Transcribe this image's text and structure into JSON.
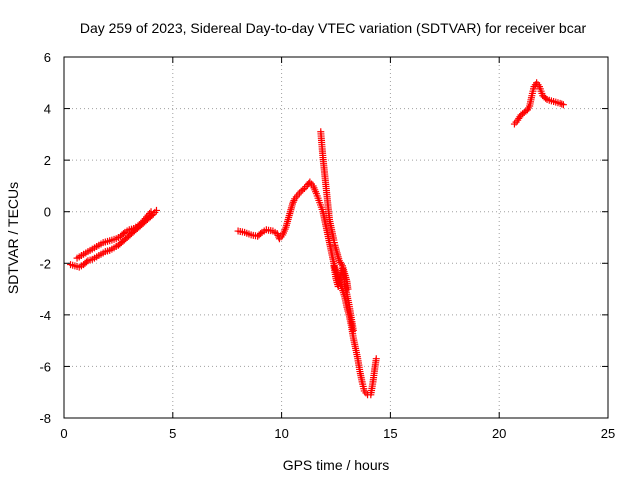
{
  "chart_data": {
    "type": "scatter",
    "title": "Day 259 of 2023, Sidereal Day-to-day VTEC variation (SDTVAR) for receiver bcar",
    "xlabel": "GPS time / hours",
    "ylabel": "SDTVAR / TECUs",
    "xlim": [
      0,
      25
    ],
    "ylim": [
      -8,
      6
    ],
    "xticks": [
      "0",
      "5",
      "10",
      "15",
      "20",
      "25"
    ],
    "yticks": [
      "-8",
      "-6",
      "-4",
      "-2",
      "0",
      "2",
      "4",
      "6"
    ],
    "grid": true,
    "marker": "+",
    "series": [
      {
        "name": "SDTVAR",
        "color": "#ff0000",
        "segments": [
          [
            [
              0.3,
              -2.05
            ],
            [
              0.5,
              -2.1
            ],
            [
              0.7,
              -2.15
            ],
            [
              0.9,
              -2.05
            ],
            [
              1.1,
              -1.9
            ],
            [
              1.3,
              -1.85
            ],
            [
              1.5,
              -1.75
            ],
            [
              1.7,
              -1.65
            ],
            [
              1.9,
              -1.55
            ],
            [
              2.1,
              -1.5
            ],
            [
              2.3,
              -1.4
            ],
            [
              2.5,
              -1.3
            ],
            [
              2.7,
              -1.15
            ],
            [
              2.9,
              -1.0
            ],
            [
              3.1,
              -0.85
            ],
            [
              3.3,
              -0.7
            ],
            [
              3.5,
              -0.55
            ],
            [
              3.7,
              -0.4
            ],
            [
              3.9,
              -0.25
            ],
            [
              4.1,
              -0.1
            ],
            [
              4.25,
              0.05
            ]
          ],
          [
            [
              0.6,
              -1.8
            ],
            [
              0.8,
              -1.7
            ],
            [
              1.0,
              -1.6
            ],
            [
              1.2,
              -1.5
            ],
            [
              1.4,
              -1.4
            ],
            [
              1.6,
              -1.3
            ],
            [
              1.8,
              -1.2
            ],
            [
              2.0,
              -1.15
            ],
            [
              2.2,
              -1.1
            ],
            [
              2.4,
              -1.05
            ],
            [
              2.6,
              -0.95
            ],
            [
              2.8,
              -0.8
            ],
            [
              3.0,
              -0.7
            ],
            [
              3.2,
              -0.65
            ],
            [
              3.4,
              -0.55
            ],
            [
              3.6,
              -0.4
            ],
            [
              3.8,
              -0.2
            ],
            [
              4.0,
              0.0
            ]
          ],
          [
            [
              8.0,
              -0.75
            ],
            [
              8.3,
              -0.8
            ],
            [
              8.6,
              -0.9
            ],
            [
              8.9,
              -0.95
            ],
            [
              9.1,
              -0.8
            ],
            [
              9.3,
              -0.7
            ],
            [
              9.6,
              -0.75
            ],
            [
              9.8,
              -0.85
            ],
            [
              9.9,
              -1.05
            ],
            [
              10.05,
              -0.9
            ],
            [
              10.2,
              -0.6
            ],
            [
              10.3,
              -0.3
            ],
            [
              10.4,
              0.0
            ],
            [
              10.5,
              0.3
            ],
            [
              10.6,
              0.5
            ],
            [
              10.75,
              0.65
            ],
            [
              10.9,
              0.8
            ],
            [
              11.05,
              0.9
            ],
            [
              11.2,
              1.05
            ],
            [
              11.3,
              1.15
            ],
            [
              11.45,
              1.0
            ],
            [
              11.6,
              0.7
            ],
            [
              11.75,
              0.35
            ],
            [
              11.9,
              0.0
            ],
            [
              12.0,
              -0.4
            ],
            [
              12.1,
              -0.8
            ],
            [
              12.2,
              -1.2
            ],
            [
              12.3,
              -1.6
            ],
            [
              12.4,
              -2.0
            ],
            [
              12.5,
              -2.3
            ],
            [
              12.6,
              -2.6
            ],
            [
              12.75,
              -2.9
            ],
            [
              12.9,
              -3.3
            ],
            [
              13.0,
              -3.7
            ],
            [
              13.1,
              -4.0
            ],
            [
              13.2,
              -4.4
            ],
            [
              13.3,
              -4.9
            ],
            [
              13.4,
              -5.3
            ],
            [
              13.5,
              -5.7
            ],
            [
              13.6,
              -6.2
            ],
            [
              13.7,
              -6.6
            ],
            [
              13.8,
              -6.95
            ],
            [
              13.95,
              -7.1
            ],
            [
              14.1,
              -7.1
            ],
            [
              14.2,
              -6.6
            ],
            [
              14.28,
              -6.1
            ],
            [
              14.35,
              -5.7
            ]
          ],
          [
            [
              11.8,
              3.1
            ],
            [
              11.85,
              2.6
            ],
            [
              11.9,
              2.1
            ],
            [
              11.95,
              1.7
            ],
            [
              12.0,
              1.3
            ],
            [
              12.05,
              0.9
            ],
            [
              12.1,
              0.5
            ],
            [
              12.15,
              0.1
            ],
            [
              12.2,
              -0.3
            ],
            [
              12.3,
              -0.7
            ],
            [
              12.4,
              -1.1
            ],
            [
              12.45,
              -1.3
            ],
            [
              12.55,
              -1.6
            ],
            [
              12.65,
              -1.9
            ],
            [
              12.8,
              -2.1
            ],
            [
              12.9,
              -2.4
            ],
            [
              13.0,
              -2.7
            ],
            [
              13.05,
              -3.0
            ]
          ],
          [
            [
              12.4,
              -2.1
            ],
            [
              12.5,
              -2.6
            ],
            [
              12.6,
              -2.9
            ],
            [
              12.7,
              -2.5
            ],
            [
              12.8,
              -2.2
            ],
            [
              12.9,
              -2.8
            ],
            [
              13.0,
              -3.2
            ],
            [
              13.1,
              -3.6
            ],
            [
              13.2,
              -4.1
            ],
            [
              13.3,
              -4.6
            ]
          ],
          [
            [
              20.7,
              3.4
            ],
            [
              20.85,
              3.55
            ],
            [
              21.0,
              3.75
            ],
            [
              21.15,
              3.85
            ],
            [
              21.3,
              3.95
            ],
            [
              21.4,
              4.1
            ],
            [
              21.5,
              4.5
            ],
            [
              21.6,
              4.85
            ],
            [
              21.72,
              5.0
            ],
            [
              21.85,
              4.85
            ],
            [
              22.0,
              4.5
            ],
            [
              22.2,
              4.35
            ],
            [
              22.4,
              4.3
            ],
            [
              22.6,
              4.25
            ],
            [
              22.8,
              4.2
            ],
            [
              22.95,
              4.15
            ]
          ]
        ]
      }
    ]
  }
}
